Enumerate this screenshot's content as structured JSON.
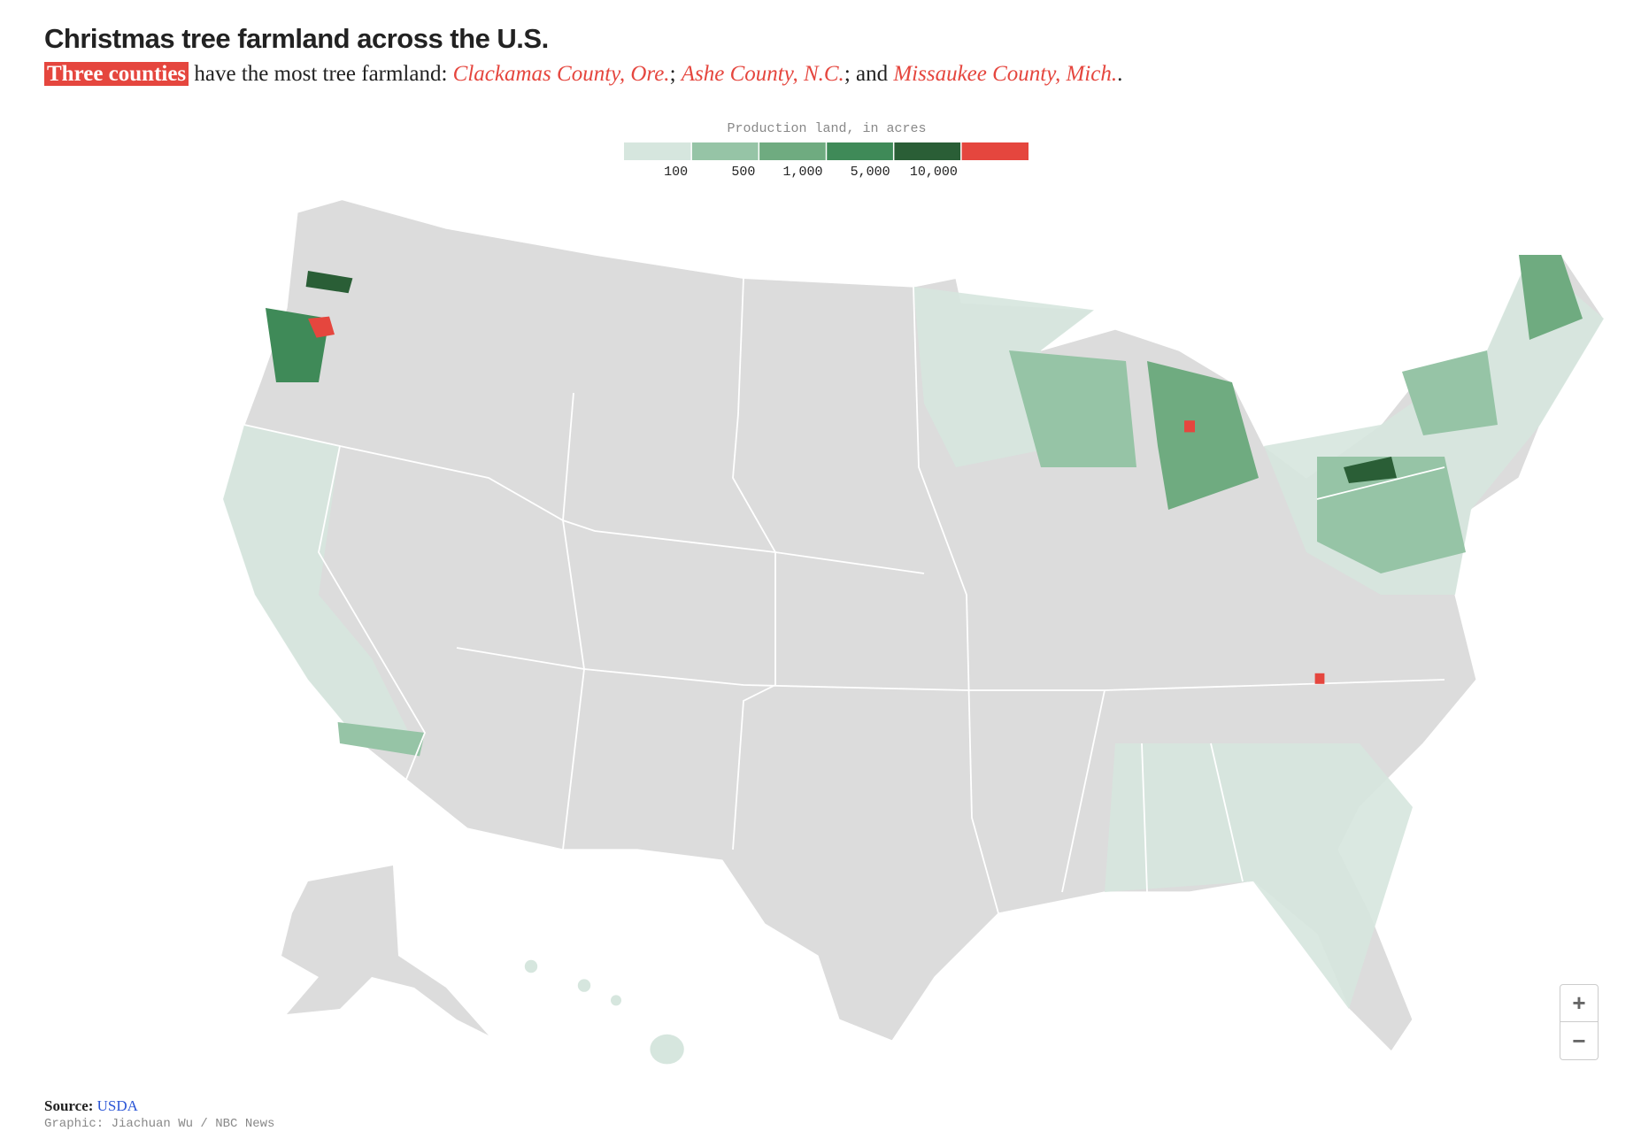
{
  "header": {
    "title": "Christmas tree farmland across the U.S.",
    "subtitle": {
      "highlight": "Three counties",
      "lead": " have the most tree farmland: ",
      "counties": [
        "Clackamas County, Ore.",
        "Ashe County, N.C.",
        "Missaukee County, Mich."
      ],
      "joins": [
        "; ",
        "; and ",
        "."
      ]
    }
  },
  "legend": {
    "title": "Production land, in acres",
    "colors": [
      "#d6e6de",
      "#96c4a6",
      "#6fab80",
      "#3f8a58",
      "#2a5e36",
      "#e5463e"
    ],
    "ticks": [
      100,
      500,
      {
        "value": 1000,
        "label": "1,000"
      },
      {
        "value": 5000,
        "label": "5,000"
      },
      {
        "value": 10000,
        "label": "10,000"
      }
    ]
  },
  "footer": {
    "source_label": "Source:",
    "source": "USDA",
    "credit": "Graphic: Jiachuan Wu / NBC News"
  },
  "controls": {
    "zoom_in": "+",
    "zoom_out": "−"
  }
}
